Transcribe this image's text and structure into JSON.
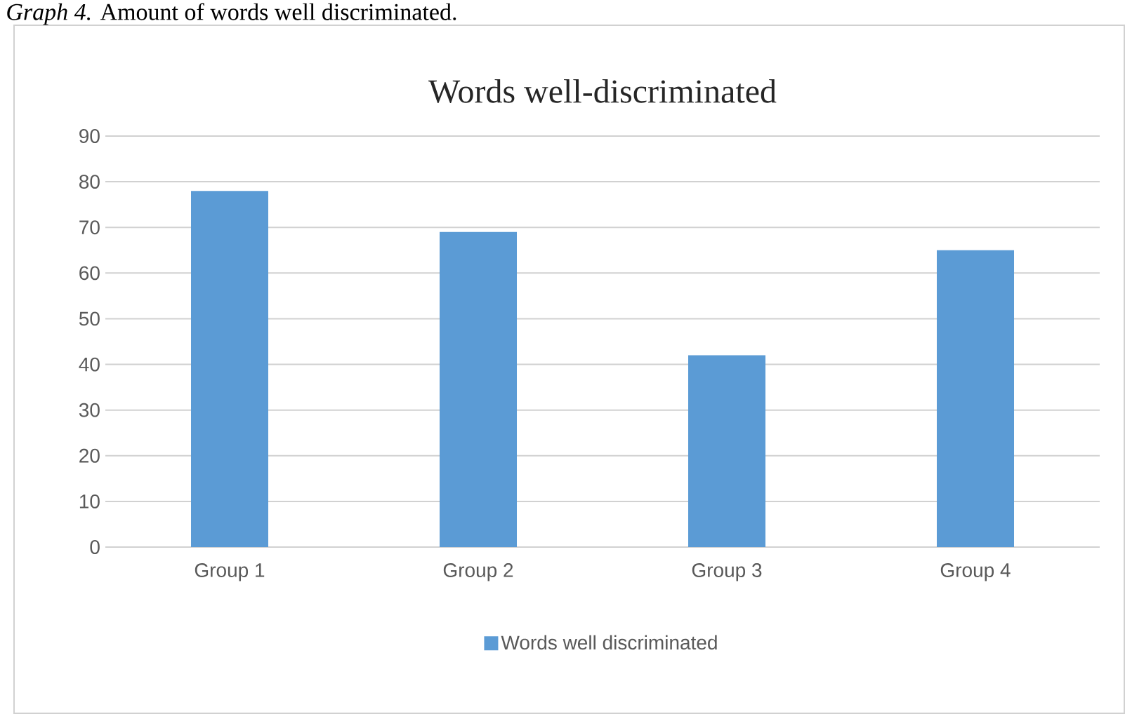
{
  "chart_data": {
    "type": "bar",
    "title": "Words well-discriminated",
    "annotations": [
      "*Graph 4.* Amount of words well discriminated."
    ],
    "categories": [
      "Group 1",
      "Group 2",
      "Group 3",
      "Group 4"
    ],
    "series": [
      {
        "name": "Words well discriminated",
        "color": "#5b9bd5",
        "values": [
          78,
          69,
          42,
          65
        ]
      }
    ],
    "ylim": [
      0,
      90
    ],
    "yticks": [
      0,
      10,
      20,
      30,
      40,
      50,
      60,
      70,
      80,
      90
    ],
    "grid": "y",
    "legend": "bottom"
  }
}
